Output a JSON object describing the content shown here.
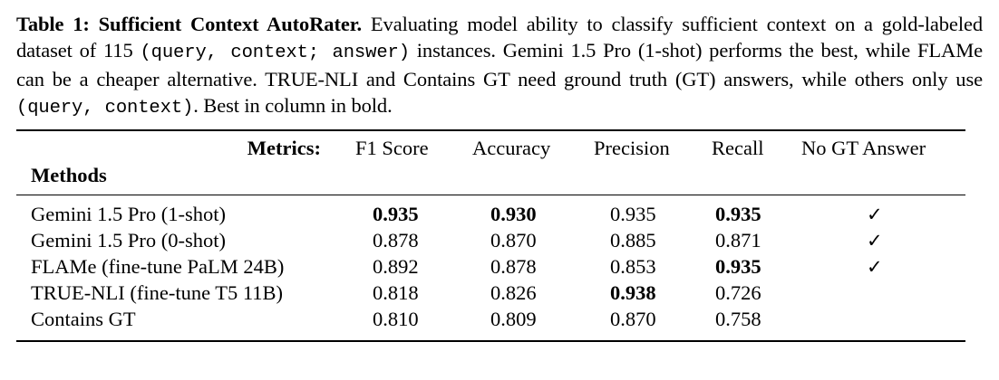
{
  "caption": {
    "label": "Table 1:",
    "title": "Sufficient Context AutoRater.",
    "text_1": " Evaluating model ability to classify sufficient context on a gold-labeled dataset of 115 ",
    "mono_1": "(query, context; answer)",
    "text_2": " instances. Gemini 1.5 Pro (1-shot) performs the best, while FLAMe can be a cheaper alternative. TRUE-NLI and Contains GT need ground truth (GT) answers, while others only use ",
    "mono_2": "(query, context)",
    "text_3": ". Best in column in bold."
  },
  "table": {
    "metrics_label": "Metrics:",
    "methods_label": "Methods",
    "columns": [
      "F1 Score",
      "Accuracy",
      "Precision",
      "Recall",
      "No GT Answer"
    ],
    "rows": [
      {
        "method": "Gemini 1.5 Pro (1-shot)",
        "f1": "0.935",
        "accuracy": "0.930",
        "precision": "0.935",
        "recall": "0.935",
        "no_gt": "✓",
        "bold": {
          "f1": true,
          "accuracy": true,
          "precision": false,
          "recall": true
        }
      },
      {
        "method": "Gemini 1.5 Pro (0-shot)",
        "f1": "0.878",
        "accuracy": "0.870",
        "precision": "0.885",
        "recall": "0.871",
        "no_gt": "✓",
        "bold": {
          "f1": false,
          "accuracy": false,
          "precision": false,
          "recall": false
        }
      },
      {
        "method": "FLAMe (fine-tune PaLM 24B)",
        "f1": "0.892",
        "accuracy": "0.878",
        "precision": "0.853",
        "recall": "0.935",
        "no_gt": "✓",
        "bold": {
          "f1": false,
          "accuracy": false,
          "precision": false,
          "recall": true
        }
      },
      {
        "method": "TRUE-NLI (fine-tune T5 11B)",
        "f1": "0.818",
        "accuracy": "0.826",
        "precision": "0.938",
        "recall": "0.726",
        "no_gt": "",
        "bold": {
          "f1": false,
          "accuracy": false,
          "precision": true,
          "recall": false
        }
      },
      {
        "method": "Contains GT",
        "f1": "0.810",
        "accuracy": "0.809",
        "precision": "0.870",
        "recall": "0.758",
        "no_gt": "",
        "bold": {
          "f1": false,
          "accuracy": false,
          "precision": false,
          "recall": false
        }
      }
    ]
  }
}
